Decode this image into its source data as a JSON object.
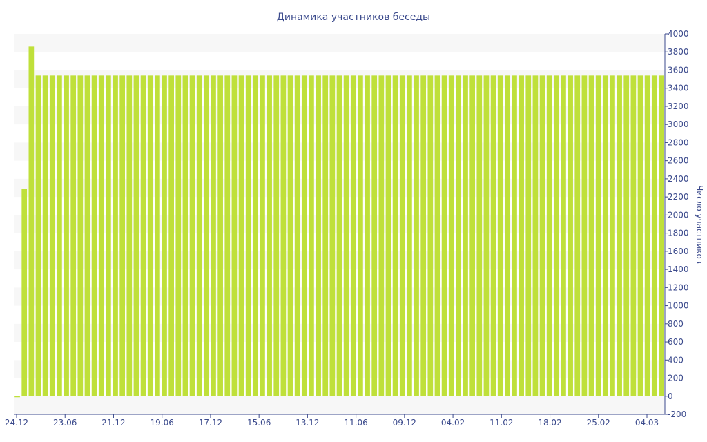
{
  "chart_data": {
    "type": "bar",
    "title": "Динамика участников беседы",
    "xlabel": "",
    "ylabel": "Число участников",
    "ylim": [
      -200,
      4000
    ],
    "yticks": [
      -200,
      0,
      200,
      400,
      600,
      800,
      1000,
      1200,
      1400,
      1600,
      1800,
      2000,
      2200,
      2400,
      2600,
      2800,
      3000,
      3200,
      3400,
      3600,
      3800,
      4000
    ],
    "y_axis_side": "right",
    "grid": "alternating horizontal bands",
    "x_tick_labels": [
      "24.12",
      "23.06",
      "21.12",
      "19.06",
      "17.12",
      "15.06",
      "13.12",
      "11.06",
      "09.12",
      "04.02",
      "11.02",
      "18.02",
      "25.02",
      "04.03"
    ],
    "series": [
      {
        "values": [
          0,
          2290,
          3860,
          3540,
          3540,
          3540,
          3540,
          3540,
          3540,
          3540,
          3540,
          3540,
          3540,
          3540,
          3540,
          3540,
          3540,
          3540,
          3540,
          3540,
          3540,
          3540,
          3540,
          3540,
          3540,
          3540,
          3540,
          3540,
          3540,
          3540,
          3540,
          3540,
          3540,
          3540,
          3540,
          3540,
          3540,
          3540,
          3540,
          3540,
          3540,
          3540,
          3540,
          3540,
          3540,
          3540,
          3540,
          3540,
          3540,
          3540,
          3540,
          3540,
          3540,
          3540,
          3540,
          3540,
          3540,
          3540,
          3540,
          3540,
          3540,
          3540,
          3540,
          3540,
          3540,
          3540,
          3540,
          3540,
          3540,
          3540,
          3540,
          3540,
          3540,
          3540,
          3540,
          3540,
          3540,
          3540,
          3540,
          3540,
          3540,
          3540,
          3540,
          3540,
          3540,
          3540,
          3540,
          3540,
          3540,
          3540,
          3540,
          3540,
          3540
        ]
      }
    ],
    "colors": {
      "bar": "#bfe03a",
      "axis": "#3b4a8c",
      "band": "#f7f7f7",
      "text": "#3b4a8c"
    }
  }
}
